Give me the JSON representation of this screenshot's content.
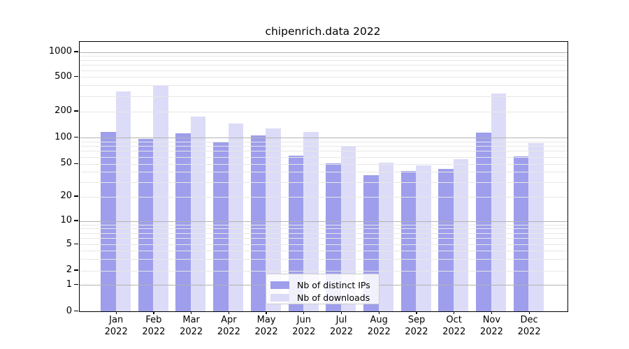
{
  "title": "chipenrich.data 2022",
  "year_label": "2022",
  "legend": {
    "items": [
      {
        "label": "Nb of distinct IPs",
        "color": "#9e9eec"
      },
      {
        "label": "Nb of downloads",
        "color": "#dcdcf8"
      }
    ]
  },
  "colors": {
    "bar_distinct_ips": "#9e9eec",
    "bar_downloads": "#dcdcf8",
    "grid_major": "#b3b3b3",
    "grid_minor": "#e7e7e7",
    "axis": "#000000",
    "background": "#ffffff"
  },
  "chart_data": {
    "type": "bar",
    "title": "chipenrich.data 2022",
    "categories": [
      "Jan 2022",
      "Feb 2022",
      "Mar 2022",
      "Apr 2022",
      "May 2022",
      "Jun 2022",
      "Jul 2022",
      "Aug 2022",
      "Sep 2022",
      "Oct 2022",
      "Nov 2022",
      "Dec 2022"
    ],
    "months": [
      "Jan",
      "Feb",
      "Mar",
      "Apr",
      "May",
      "Jun",
      "Jul",
      "Aug",
      "Sep",
      "Oct",
      "Nov",
      "Dec"
    ],
    "series": [
      {
        "name": "Nb of distinct IPs",
        "color": "#9e9eec",
        "values": [
          116,
          97,
          113,
          90,
          107,
          63,
          51,
          37,
          41,
          44,
          115,
          62
        ]
      },
      {
        "name": "Nb of downloads",
        "color": "#dcdcf8",
        "values": [
          345,
          395,
          176,
          146,
          128,
          118,
          81,
          52,
          48,
          57,
          322,
          87
        ]
      }
    ],
    "xlabel": "",
    "ylabel": "",
    "y_scale": "pseudo-log",
    "y_ticks": [
      0,
      1,
      2,
      5,
      10,
      20,
      50,
      100,
      200,
      500,
      1000
    ],
    "ylim": [
      0,
      1316
    ],
    "grid": true,
    "legend_position": "inside-bottom-center"
  }
}
